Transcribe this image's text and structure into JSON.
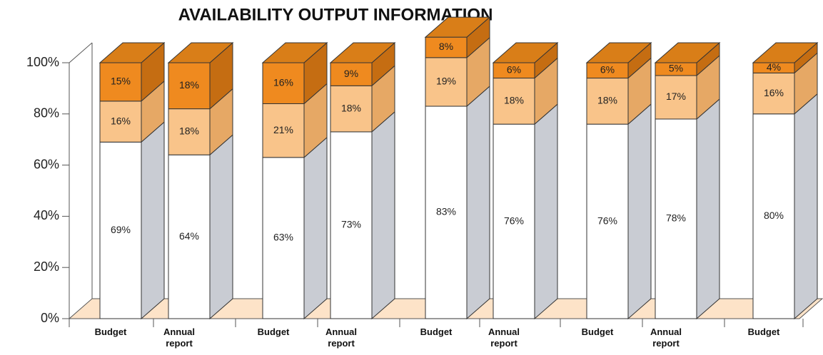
{
  "chart_data": {
    "type": "bar3d-stacked",
    "title": "AVAILABILITY OUTPUT INFORMATION",
    "categories": [
      "Budget",
      "Annual report",
      "Budget",
      "Annual report",
      "Budget",
      "Annual report",
      "Budget",
      "Annual report",
      "Budget"
    ],
    "series": [
      {
        "color": "#ffffff",
        "values": [
          69,
          64,
          63,
          73,
          83,
          76,
          76,
          78,
          80
        ],
        "value_labels": [
          "69%",
          "64%",
          "63%",
          "73%",
          "83%",
          "76%",
          "76%",
          "78%",
          "80%"
        ]
      },
      {
        "color": "#f9c48a",
        "values": [
          16,
          18,
          21,
          18,
          19,
          18,
          18,
          17,
          16
        ],
        "value_labels": [
          "16%",
          "18%",
          "21%",
          "18%",
          "19%",
          "18%",
          "18%",
          "17%",
          "16%"
        ]
      },
      {
        "color": "#ef8a1f",
        "values": [
          15,
          18,
          16,
          9,
          8,
          6,
          6,
          5,
          4
        ],
        "value_labels": [
          "15%",
          "18%",
          "16%",
          "9%",
          "8%",
          "6%",
          "6%",
          "5%",
          "4%"
        ]
      }
    ],
    "ylim": [
      0,
      100
    ],
    "yticks": [
      {
        "value": 0,
        "label": "0%"
      },
      {
        "value": 20,
        "label": "20%"
      },
      {
        "value": 40,
        "label": "40%"
      },
      {
        "value": 60,
        "label": "60%"
      },
      {
        "value": 80,
        "label": "80%"
      },
      {
        "value": 100,
        "label": "100%"
      }
    ]
  }
}
